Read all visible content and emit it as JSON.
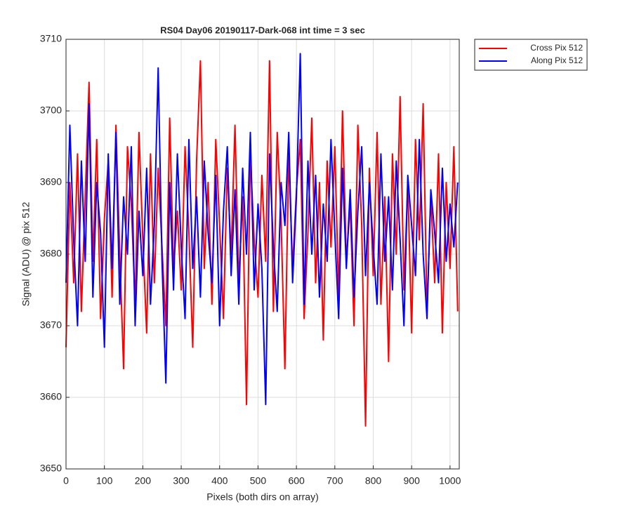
{
  "chart_data": {
    "type": "line",
    "title": "RS04 Day06 20190117-Dark-068 int time = 3 sec",
    "x_label": "Pixels (both dirs on array)",
    "y_label": "Signal (ADU) @ pix 512",
    "x": [
      0,
      10,
      20,
      30,
      40,
      50,
      60,
      70,
      80,
      90,
      100,
      110,
      120,
      130,
      140,
      150,
      160,
      170,
      180,
      190,
      200,
      210,
      220,
      230,
      240,
      250,
      260,
      270,
      280,
      290,
      300,
      310,
      320,
      330,
      340,
      350,
      360,
      370,
      380,
      390,
      400,
      410,
      420,
      430,
      440,
      450,
      460,
      470,
      480,
      490,
      500,
      510,
      520,
      530,
      540,
      550,
      560,
      570,
      580,
      590,
      600,
      610,
      620,
      630,
      640,
      650,
      660,
      670,
      680,
      690,
      700,
      710,
      720,
      730,
      740,
      750,
      760,
      770,
      780,
      790,
      800,
      810,
      820,
      830,
      840,
      850,
      860,
      870,
      880,
      890,
      900,
      910,
      920,
      930,
      940,
      950,
      960,
      970,
      980,
      990,
      1000,
      1010,
      1020
    ],
    "series": [
      {
        "name": "Cross Pix 512",
        "color": "#ff0000",
        "values": [
          3667,
          3690,
          3676,
          3694,
          3672,
          3688,
          3704,
          3679,
          3696,
          3671,
          3685,
          3693,
          3674,
          3698,
          3680,
          3664,
          3695,
          3687,
          3673,
          3697,
          3682,
          3669,
          3694,
          3676,
          3692,
          3681,
          3670,
          3699,
          3678,
          3686,
          3675,
          3695,
          3683,
          3667,
          3693,
          3707,
          3678,
          3690,
          3673,
          3696,
          3684,
          3671,
          3692,
          3680,
          3698,
          3676,
          3688,
          3659,
          3694,
          3682,
          3674,
          3691,
          3679,
          3707,
          3672,
          3697,
          3685,
          3664,
          3694,
          3678,
          3689,
          3696,
          3671,
          3683,
          3699,
          3676,
          3690,
          3668,
          3693,
          3681,
          3695,
          3674,
          3700,
          3679,
          3687,
          3670,
          3698,
          3684,
          3656,
          3692,
          3677,
          3697,
          3673,
          3688,
          3665,
          3694,
          3680,
          3702,
          3675,
          3690,
          3669,
          3696,
          3682,
          3701,
          3672,
          3688,
          3676,
          3694,
          3669,
          3690,
          3678,
          3695,
          3672
        ]
      },
      {
        "name": "Along Pix 512",
        "color": "#0000ff",
        "values": [
          3676,
          3698,
          3682,
          3670,
          3693,
          3679,
          3701,
          3674,
          3690,
          3683,
          3667,
          3694,
          3678,
          3697,
          3673,
          3688,
          3680,
          3695,
          3670,
          3686,
          3677,
          3692,
          3673,
          3684,
          3706,
          3679,
          3662,
          3690,
          3675,
          3694,
          3681,
          3671,
          3696,
          3678,
          3688,
          3674,
          3693,
          3683,
          3676,
          3691,
          3670,
          3686,
          3695,
          3677,
          3689,
          3673,
          3692,
          3680,
          3697,
          3675,
          3687,
          3678,
          3659,
          3694,
          3681,
          3672,
          3690,
          3684,
          3697,
          3676,
          3688,
          3708,
          3673,
          3693,
          3680,
          3691,
          3674,
          3687,
          3679,
          3696,
          3683,
          3671,
          3692,
          3678,
          3689,
          3674,
          3686,
          3695,
          3677,
          3690,
          3681,
          3673,
          3694,
          3679,
          3688,
          3675,
          3693,
          3682,
          3670,
          3691,
          3684,
          3677,
          3696,
          3680,
          3671,
          3689,
          3683,
          3676,
          3692,
          3679,
          3687,
          3681,
          3690
        ]
      }
    ],
    "xlim": [
      0,
      1024
    ],
    "ylim": [
      3650,
      3710
    ],
    "xticks": [
      0,
      100,
      200,
      300,
      400,
      500,
      600,
      700,
      800,
      900,
      1000
    ],
    "yticks": [
      3650,
      3660,
      3670,
      3680,
      3690,
      3700,
      3710
    ],
    "grid": true,
    "legend": "northeastoutside"
  }
}
